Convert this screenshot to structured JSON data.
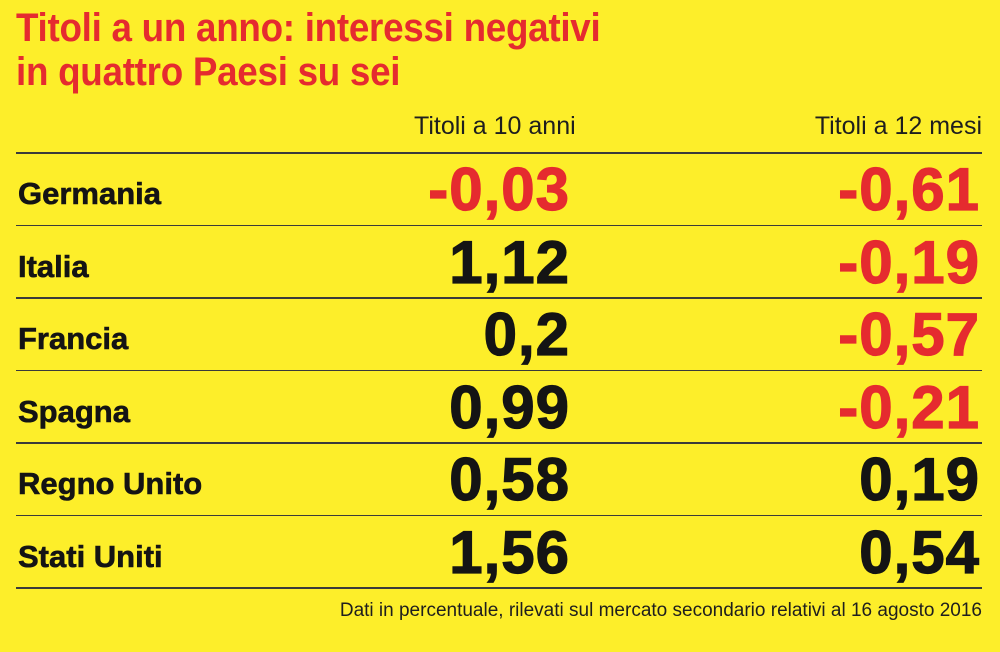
{
  "title_line1": "Titoli a un anno: interessi negativi",
  "title_line2": "in quattro Paesi su sei",
  "footnote": "Dati in percentuale, rilevati sul mercato secondario relativi al 16 agosto 2016",
  "colors": {
    "background": "#fdee2a",
    "negative": "#e52b2f",
    "positive": "#141414"
  },
  "chart_data": {
    "type": "table",
    "title": "Titoli a un anno: interessi negativi in quattro Paesi su sei",
    "columns": [
      "Titoli a 10 anni",
      "Titoli a 12 mesi"
    ],
    "rows": [
      {
        "country": "Germania",
        "ten_year": "-0,03",
        "twelve_month": "-0,61"
      },
      {
        "country": "Italia",
        "ten_year": "1,12",
        "twelve_month": "-0,19"
      },
      {
        "country": "Francia",
        "ten_year": "0,2",
        "twelve_month": "-0,57"
      },
      {
        "country": "Spagna",
        "ten_year": "0,99",
        "twelve_month": "-0,21"
      },
      {
        "country": "Regno Unito",
        "ten_year": "0,58",
        "twelve_month": "0,19"
      },
      {
        "country": "Stati Uniti",
        "ten_year": "1,56",
        "twelve_month": "0,54"
      }
    ],
    "values_numeric": {
      "ten_year": [
        -0.03,
        1.12,
        0.2,
        0.99,
        0.58,
        1.56
      ],
      "twelve_month": [
        -0.61,
        -0.19,
        -0.57,
        -0.21,
        0.19,
        0.54
      ]
    },
    "unit": "Dati in percentuale"
  }
}
